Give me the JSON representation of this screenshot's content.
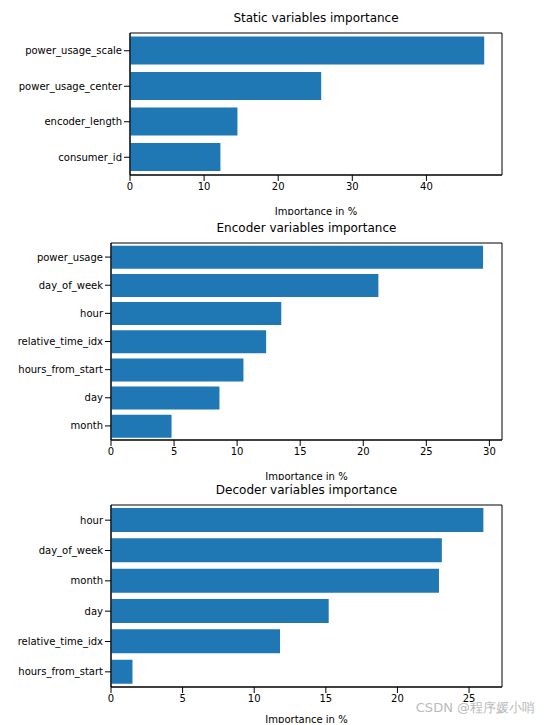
{
  "chart_data": [
    {
      "type": "bar",
      "orientation": "horizontal",
      "title": "Static variables importance",
      "xlabel": "Importance in %",
      "categories": [
        "power_usage_scale",
        "power_usage_center",
        "encoder_length",
        "consumer_id"
      ],
      "values": [
        47.8,
        25.8,
        14.5,
        12.2
      ],
      "color": "#1f77b4",
      "xlim": [
        0,
        50.2
      ],
      "xticks": [
        0,
        10,
        20,
        30,
        40
      ],
      "grid": false
    },
    {
      "type": "bar",
      "orientation": "horizontal",
      "title": "Encoder variables importance",
      "xlabel": "Importance in %",
      "categories": [
        "power_usage",
        "day_of_week",
        "hour",
        "relative_time_idx",
        "hours_from_start",
        "day",
        "month"
      ],
      "values": [
        29.5,
        21.2,
        13.5,
        12.3,
        10.5,
        8.6,
        4.8
      ],
      "color": "#1f77b4",
      "xlim": [
        0,
        31.0
      ],
      "xticks": [
        0,
        5,
        10,
        15,
        20,
        25,
        30
      ],
      "grid": false
    },
    {
      "type": "bar",
      "orientation": "horizontal",
      "title": "Decoder variables importance",
      "xlabel": "Importance in %",
      "categories": [
        "hour",
        "day_of_week",
        "month",
        "day",
        "relative_time_idx",
        "hours_from_start"
      ],
      "values": [
        26.0,
        23.1,
        22.9,
        15.2,
        11.8,
        1.5
      ],
      "color": "#1f77b4",
      "xlim": [
        0,
        27.3
      ],
      "xticks": [
        0,
        5,
        10,
        15,
        20,
        25
      ],
      "grid": false,
      "annotations": [
        "CSDN @程序媛小哨"
      ]
    }
  ]
}
